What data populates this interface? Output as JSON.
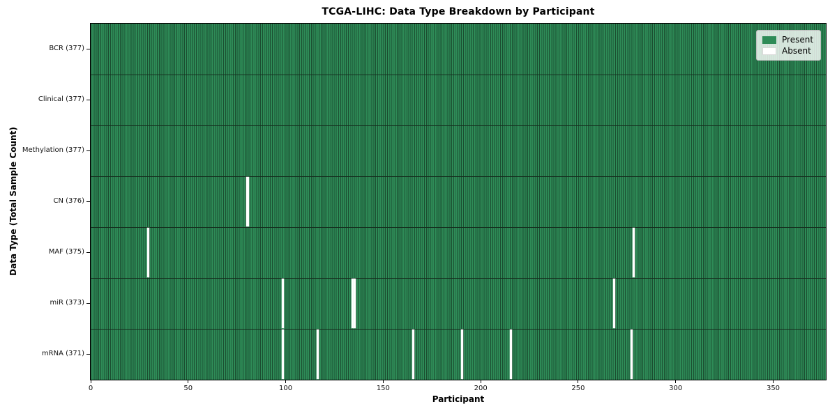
{
  "chart_data": {
    "type": "heatmap",
    "title": "TCGA-LIHC: Data Type Breakdown by Participant",
    "xlabel": "Participant",
    "ylabel": "Data Type (Total Sample Count)",
    "x_ticks": [
      0,
      50,
      100,
      150,
      200,
      250,
      300,
      350
    ],
    "x_range": [
      0,
      377
    ],
    "n_participants": 377,
    "grid": "cell-borders",
    "legend_position": "upper-right",
    "legend": [
      {
        "label": "Present",
        "color": "#2e8b57"
      },
      {
        "label": "Absent",
        "color": "#ffffff"
      }
    ],
    "rows": [
      {
        "label": "BCR (377)",
        "data_type": "BCR",
        "present_count": 377,
        "absent_participants": []
      },
      {
        "label": "Clinical (377)",
        "data_type": "Clinical",
        "present_count": 377,
        "absent_participants": []
      },
      {
        "label": "Methylation (377)",
        "data_type": "Methylation",
        "present_count": 377,
        "absent_participants": []
      },
      {
        "label": "CN (376)",
        "data_type": "CN",
        "present_count": 376,
        "absent_participants": [
          80
        ]
      },
      {
        "label": "MAF (375)",
        "data_type": "MAF",
        "present_count": 375,
        "absent_participants": [
          29,
          278
        ]
      },
      {
        "label": "miR (373)",
        "data_type": "miR",
        "present_count": 373,
        "absent_participants": [
          98,
          134,
          135,
          268
        ]
      },
      {
        "label": "mRNA (371)",
        "data_type": "mRNA",
        "present_count": 371,
        "absent_participants": [
          98,
          116,
          165,
          190,
          215,
          277
        ]
      }
    ],
    "colors": {
      "present": "#2e8b57",
      "absent": "#ffffff",
      "cell_edge": "#1b4d30",
      "row_divider": "#152e1e",
      "plot_border": "#000000"
    }
  }
}
